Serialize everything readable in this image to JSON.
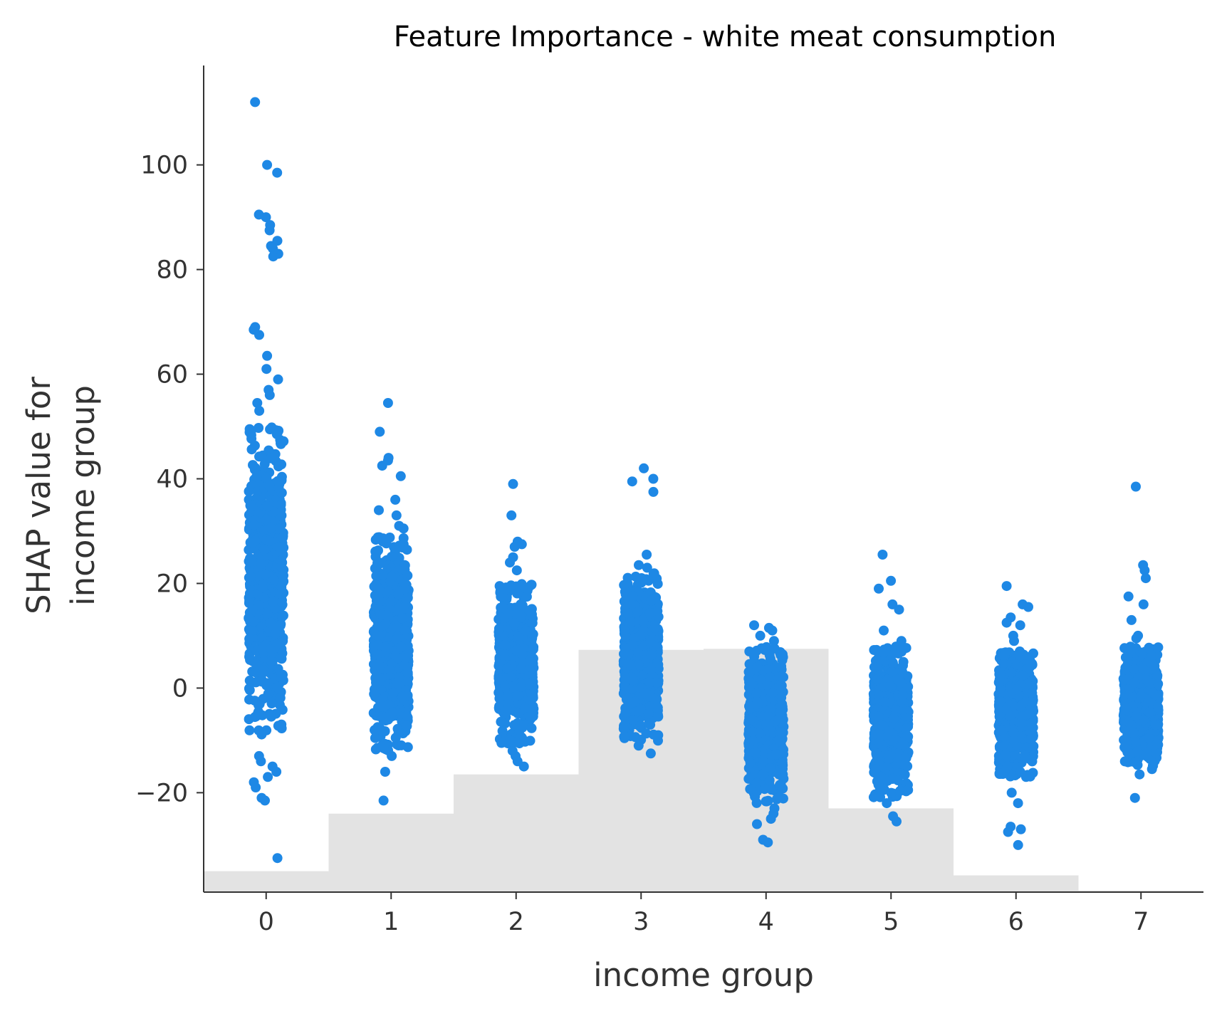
{
  "chart_data": {
    "type": "scatter",
    "title": "Feature Importance - white meat consumption",
    "xlabel": "income group",
    "ylabel_lines": [
      "SHAP value for",
      "income group"
    ],
    "x_ticks": [
      0,
      1,
      2,
      3,
      4,
      5,
      6,
      7
    ],
    "y_ticks": [
      -20,
      0,
      20,
      40,
      60,
      80,
      100
    ],
    "xlim": [
      -0.5,
      7.5
    ],
    "ylim": [
      -39,
      119
    ],
    "grid": false,
    "point_color": "#1E88E5",
    "histogram_color": "#E3E3E3",
    "axis_color": "#333333",
    "histogram_bars": [
      {
        "x": 0,
        "top": -35
      },
      {
        "x": 1,
        "top": -24
      },
      {
        "x": 2,
        "top": -16.5
      },
      {
        "x": 3,
        "top": 7.3
      },
      {
        "x": 4,
        "top": 7.5
      },
      {
        "x": 5,
        "top": -23
      },
      {
        "x": 6,
        "top": -35.8
      },
      {
        "x": 7,
        "top": -38.7
      }
    ],
    "groups": [
      {
        "x": 0,
        "dense_range": [
          -9,
          50
        ],
        "outliers": [
          112,
          100,
          98.5,
          90.5,
          90,
          88.5,
          87.5,
          85.5,
          84.5,
          84,
          83,
          82.5,
          69,
          68.5,
          67.5,
          63.5,
          61,
          59,
          57,
          56,
          54.5,
          53,
          -13,
          -14,
          -15,
          -16,
          -17,
          -18,
          -19,
          -21,
          -21.5,
          -32.5
        ]
      },
      {
        "x": 1,
        "dense_range": [
          -12,
          29
        ],
        "outliers": [
          54.5,
          49,
          44,
          43.5,
          42.5,
          40.5,
          36,
          34,
          33,
          31,
          30.5,
          -13,
          -16,
          -21.5
        ]
      },
      {
        "x": 2,
        "dense_range": [
          -11,
          20
        ],
        "outliers": [
          39,
          33,
          28,
          27.5,
          27,
          25,
          24,
          22.5,
          -12,
          -13,
          -14,
          -15
        ]
      },
      {
        "x": 3,
        "dense_range": [
          -10.5,
          22
        ],
        "outliers": [
          42,
          40,
          39.5,
          37.5,
          25.5,
          23.5,
          23,
          -11,
          -12.5
        ]
      },
      {
        "x": 4,
        "dense_range": [
          -22,
          8
        ],
        "outliers": [
          12,
          11.5,
          11,
          10,
          9,
          -23,
          -24,
          -25,
          -26,
          -29,
          -29.5
        ]
      },
      {
        "x": 5,
        "dense_range": [
          -21,
          8
        ],
        "outliers": [
          25.5,
          20.5,
          19,
          16,
          15,
          11,
          9,
          -22,
          -24.5,
          -25.5
        ]
      },
      {
        "x": 6,
        "dense_range": [
          -17,
          7
        ],
        "outliers": [
          19.5,
          16,
          15.5,
          13.5,
          12.5,
          12,
          10,
          9,
          -20,
          -22,
          -26.5,
          -27,
          -27.5,
          -30
        ]
      },
      {
        "x": 7,
        "dense_range": [
          -15,
          8
        ],
        "outliers": [
          38.5,
          23.5,
          22.5,
          21,
          17.5,
          16,
          13,
          10,
          9.5,
          -15.5,
          -16.5,
          -21
        ]
      }
    ]
  }
}
